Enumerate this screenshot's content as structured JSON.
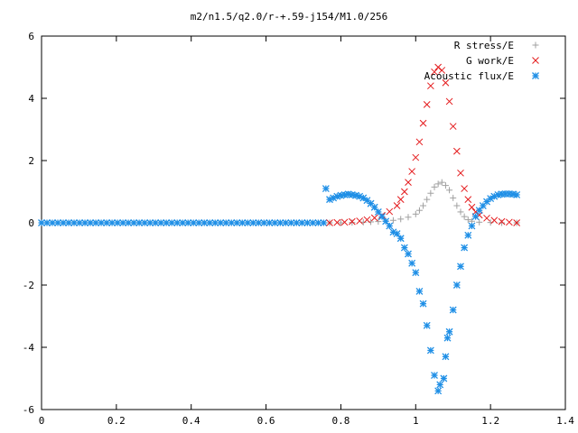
{
  "chart_data": {
    "type": "scatter",
    "title": "m2/n1.5/q2.0/r-+.59-j154/M1.0/256",
    "xlabel": "",
    "ylabel": "",
    "xlim": [
      0,
      1.4
    ],
    "ylim": [
      -6,
      6
    ],
    "x_ticks": [
      "0",
      "0.2",
      "0.4",
      "0.6",
      "0.8",
      "1",
      "1.2",
      "1.4"
    ],
    "y_ticks": [
      "6",
      "4",
      "2",
      "0",
      "-2",
      "-4",
      "-6"
    ],
    "x_tick_values": [
      0,
      0.2,
      0.4,
      0.6,
      0.8,
      1.0,
      1.2,
      1.4
    ],
    "y_tick_values": [
      6,
      4,
      2,
      0,
      -2,
      -4,
      -6
    ],
    "grid": false,
    "legend_position": "top-right",
    "series": [
      {
        "name": "R stress/E",
        "marker": "plus",
        "color": "#a0a0a0",
        "points": [
          [
            0.77,
            0.0
          ],
          [
            0.8,
            0.0
          ],
          [
            0.83,
            0.01
          ],
          [
            0.86,
            0.02
          ],
          [
            0.88,
            0.03
          ],
          [
            0.9,
            0.04
          ],
          [
            0.92,
            0.06
          ],
          [
            0.94,
            0.08
          ],
          [
            0.96,
            0.12
          ],
          [
            0.98,
            0.18
          ],
          [
            1.0,
            0.28
          ],
          [
            1.01,
            0.4
          ],
          [
            1.02,
            0.55
          ],
          [
            1.03,
            0.75
          ],
          [
            1.04,
            0.95
          ],
          [
            1.05,
            1.15
          ],
          [
            1.06,
            1.25
          ],
          [
            1.07,
            1.3
          ],
          [
            1.08,
            1.2
          ],
          [
            1.09,
            1.05
          ],
          [
            1.1,
            0.8
          ],
          [
            1.11,
            0.55
          ],
          [
            1.12,
            0.35
          ],
          [
            1.13,
            0.2
          ],
          [
            1.14,
            0.1
          ],
          [
            1.15,
            0.05
          ],
          [
            1.17,
            0.02
          ],
          [
            1.2,
            0.01
          ],
          [
            1.23,
            0.0
          ],
          [
            1.27,
            0.0
          ]
        ]
      },
      {
        "name": "G work/E",
        "marker": "cross",
        "color": "#e41a1c",
        "points": [
          [
            0.77,
            0.0
          ],
          [
            0.79,
            0.01
          ],
          [
            0.81,
            0.02
          ],
          [
            0.83,
            0.04
          ],
          [
            0.85,
            0.06
          ],
          [
            0.87,
            0.1
          ],
          [
            0.89,
            0.16
          ],
          [
            0.91,
            0.24
          ],
          [
            0.93,
            0.36
          ],
          [
            0.95,
            0.55
          ],
          [
            0.96,
            0.75
          ],
          [
            0.97,
            1.0
          ],
          [
            0.98,
            1.3
          ],
          [
            0.99,
            1.65
          ],
          [
            1.0,
            2.1
          ],
          [
            1.01,
            2.6
          ],
          [
            1.02,
            3.2
          ],
          [
            1.03,
            3.8
          ],
          [
            1.04,
            4.4
          ],
          [
            1.05,
            4.85
          ],
          [
            1.06,
            5.0
          ],
          [
            1.07,
            4.9
          ],
          [
            1.08,
            4.5
          ],
          [
            1.09,
            3.9
          ],
          [
            1.1,
            3.1
          ],
          [
            1.11,
            2.3
          ],
          [
            1.12,
            1.6
          ],
          [
            1.13,
            1.1
          ],
          [
            1.14,
            0.75
          ],
          [
            1.15,
            0.5
          ],
          [
            1.16,
            0.35
          ],
          [
            1.17,
            0.25
          ],
          [
            1.19,
            0.15
          ],
          [
            1.21,
            0.08
          ],
          [
            1.23,
            0.04
          ],
          [
            1.25,
            0.02
          ],
          [
            1.27,
            0.0
          ]
        ]
      },
      {
        "name": "Acoustic flux/E",
        "marker": "star",
        "color": "#1f8fe6",
        "points": [
          [
            0.76,
            1.1
          ],
          [
            0.77,
            0.75
          ],
          [
            0.78,
            0.8
          ],
          [
            0.79,
            0.85
          ],
          [
            0.8,
            0.88
          ],
          [
            0.81,
            0.9
          ],
          [
            0.82,
            0.92
          ],
          [
            0.83,
            0.9
          ],
          [
            0.84,
            0.88
          ],
          [
            0.85,
            0.85
          ],
          [
            0.86,
            0.8
          ],
          [
            0.87,
            0.72
          ],
          [
            0.88,
            0.62
          ],
          [
            0.89,
            0.5
          ],
          [
            0.9,
            0.35
          ],
          [
            0.91,
            0.2
          ],
          [
            0.92,
            0.05
          ],
          [
            0.93,
            -0.1
          ],
          [
            0.94,
            -0.3
          ],
          [
            0.95,
            -0.35
          ],
          [
            0.96,
            -0.5
          ],
          [
            0.97,
            -0.8
          ],
          [
            0.98,
            -1.0
          ],
          [
            0.99,
            -1.3
          ],
          [
            1.0,
            -1.6
          ],
          [
            1.01,
            -2.2
          ],
          [
            1.02,
            -2.6
          ],
          [
            1.03,
            -3.3
          ],
          [
            1.04,
            -4.1
          ],
          [
            1.05,
            -4.9
          ],
          [
            1.06,
            -5.4
          ],
          [
            1.065,
            -5.2
          ],
          [
            1.075,
            -5.0
          ],
          [
            1.08,
            -4.3
          ],
          [
            1.085,
            -3.7
          ],
          [
            1.09,
            -3.5
          ],
          [
            1.1,
            -2.8
          ],
          [
            1.11,
            -2.0
          ],
          [
            1.12,
            -1.4
          ],
          [
            1.13,
            -0.8
          ],
          [
            1.14,
            -0.4
          ],
          [
            1.15,
            -0.1
          ],
          [
            1.16,
            0.2
          ],
          [
            1.17,
            0.4
          ],
          [
            1.18,
            0.55
          ],
          [
            1.19,
            0.68
          ],
          [
            1.2,
            0.78
          ],
          [
            1.21,
            0.85
          ],
          [
            1.22,
            0.9
          ],
          [
            1.23,
            0.92
          ],
          [
            1.24,
            0.93
          ],
          [
            1.25,
            0.93
          ],
          [
            1.26,
            0.92
          ],
          [
            1.27,
            0.9
          ]
        ]
      }
    ],
    "baseline_series": {
      "name": "Acoustic flux/E",
      "x_start": 0.0,
      "x_end": 0.76,
      "step": 0.0145,
      "y": 0.0
    }
  }
}
